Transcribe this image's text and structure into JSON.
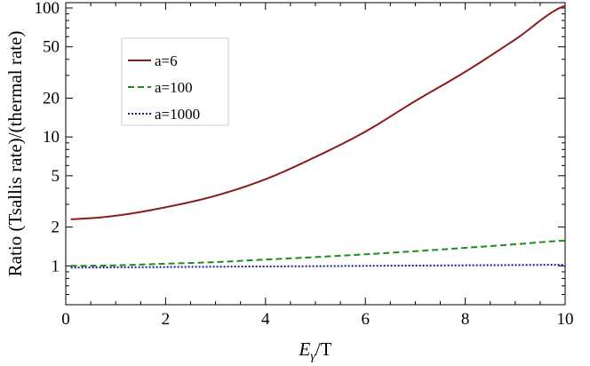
{
  "chart_data": {
    "type": "line",
    "title": "",
    "xlabel": "E_γ/T",
    "xlabel_main": "E",
    "xlabel_sub": "γ",
    "xlabel_rest": "/T",
    "ylabel": "Ratio (Tsallis rate)/(thermal rate)",
    "xlim": [
      0,
      10
    ],
    "ylim": [
      0.5,
      110
    ],
    "y_scale": "log",
    "grid": false,
    "legend_position": "upper-left",
    "x_ticks": [
      0,
      2,
      4,
      6,
      8,
      10
    ],
    "x_tick_labels": [
      "0",
      "2",
      "4",
      "6",
      "8",
      "10"
    ],
    "y_ticks": [
      1,
      2,
      5,
      10,
      20,
      50,
      100
    ],
    "y_tick_labels": [
      "1",
      "2",
      "5",
      "10",
      "20",
      "50",
      "100"
    ],
    "x": [
      0.1,
      1,
      2,
      3,
      4,
      5,
      6,
      7,
      8,
      9,
      10
    ],
    "series": [
      {
        "name": "a=6",
        "color": "#8b1a1a",
        "dash": "solid",
        "values": [
          2.3,
          2.45,
          2.85,
          3.5,
          4.7,
          7.0,
          11.0,
          19.0,
          32.0,
          57.0,
          104.0
        ]
      },
      {
        "name": "a=100",
        "color": "#1e8c1e",
        "dash": "dashed",
        "values": [
          1.0,
          1.01,
          1.04,
          1.07,
          1.12,
          1.17,
          1.23,
          1.3,
          1.38,
          1.47,
          1.57
        ]
      },
      {
        "name": "a=1000",
        "color": "#1a1a8c",
        "dash": "dotted",
        "values": [
          0.97,
          0.975,
          0.98,
          0.985,
          0.99,
          0.995,
          1.0,
          1.005,
          1.01,
          1.015,
          1.02
        ]
      }
    ]
  }
}
